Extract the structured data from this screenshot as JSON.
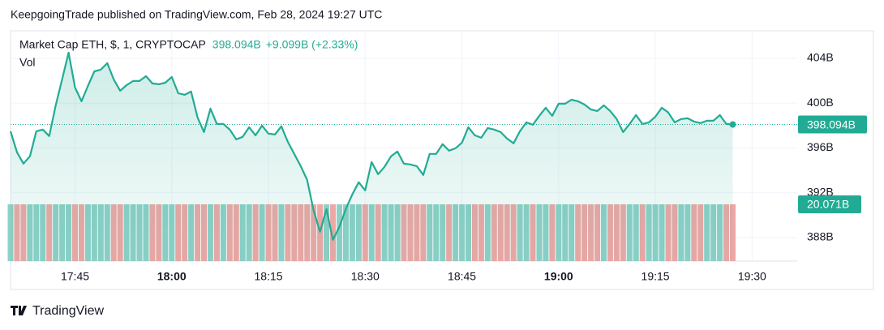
{
  "header": "KeepgoingTrade published on TradingView.com, Feb 28, 2024 19:27 UTC",
  "footer": "TradingView",
  "chart_data": {
    "type": "area",
    "x": [
      "17:35",
      "17:36",
      "17:37",
      "17:38",
      "17:39",
      "17:40",
      "17:41",
      "17:42",
      "17:43",
      "17:44",
      "17:45",
      "17:46",
      "17:47",
      "17:48",
      "17:49",
      "17:50",
      "17:51",
      "17:52",
      "17:53",
      "17:54",
      "17:55",
      "17:56",
      "17:57",
      "17:58",
      "17:59",
      "18:00",
      "18:01",
      "18:02",
      "18:03",
      "18:04",
      "18:05",
      "18:06",
      "18:07",
      "18:08",
      "18:09",
      "18:10",
      "18:11",
      "18:12",
      "18:13",
      "18:14",
      "18:15",
      "18:16",
      "18:17",
      "18:18",
      "18:19",
      "18:20",
      "18:21",
      "18:22",
      "18:23",
      "18:24",
      "18:25",
      "18:26",
      "18:27",
      "18:28",
      "18:29",
      "18:30",
      "18:31",
      "18:32",
      "18:33",
      "18:34",
      "18:35",
      "18:36",
      "18:37",
      "18:38",
      "18:39",
      "18:40",
      "18:41",
      "18:42",
      "18:43",
      "18:44",
      "18:45",
      "18:46",
      "18:47",
      "18:48",
      "18:49",
      "18:50",
      "18:51",
      "18:52",
      "18:53",
      "18:54",
      "18:55",
      "18:56",
      "18:57",
      "18:58",
      "18:59",
      "19:00",
      "19:01",
      "19:02",
      "19:03",
      "19:04",
      "19:05",
      "19:06",
      "19:07",
      "19:08",
      "19:09",
      "19:10",
      "19:11",
      "19:12",
      "19:13",
      "19:14",
      "19:15",
      "19:16",
      "19:17",
      "19:18",
      "19:19",
      "19:20",
      "19:21",
      "19:22",
      "19:23",
      "19:24",
      "19:25",
      "19:26",
      "19:27"
    ],
    "series": [
      {
        "name": "Market Cap ETH, $, 1, CRYPTOCAP",
        "color": "#22ab94",
        "last_label": "398.094B",
        "change_label": "+9.099B (+2.33%)",
        "values": [
          397.49,
          395.61,
          394.6,
          395.25,
          397.49,
          397.64,
          397.06,
          399.81,
          402.12,
          404.51,
          401.4,
          400.17,
          401.54,
          402.84,
          402.99,
          403.57,
          402.12,
          401.11,
          401.61,
          401.98,
          401.98,
          402.41,
          401.76,
          401.69,
          401.83,
          402.34,
          400.89,
          400.75,
          401.04,
          398.72,
          397.42,
          399.52,
          398.14,
          398.14,
          397.64,
          396.77,
          396.99,
          397.85,
          397.13,
          398.0,
          397.28,
          397.2,
          397.93,
          396.55,
          395.47,
          394.38,
          393.15,
          390.41,
          388.53,
          390.55,
          387.8,
          388.96,
          390.55,
          391.85,
          392.94,
          392.21,
          394.74,
          393.66,
          394.31,
          395.25,
          395.68,
          394.6,
          394.53,
          394.38,
          393.59,
          395.47,
          395.47,
          396.34,
          395.76,
          395.97,
          396.48,
          397.85,
          397.13,
          396.91,
          397.78,
          397.64,
          397.42,
          396.84,
          396.41,
          397.49,
          398.29,
          398.07,
          398.87,
          399.59,
          398.87,
          399.95,
          399.95,
          400.31,
          400.17,
          399.88,
          399.44,
          399.3,
          399.81,
          399.3,
          398.58,
          397.42,
          398.14,
          398.94,
          398.14,
          398.29,
          398.79,
          399.59,
          399.16,
          398.29,
          398.58,
          398.65,
          398.36,
          398.22,
          398.43,
          398.43,
          398.94,
          398.14,
          398.094
        ]
      }
    ],
    "volume": {
      "name": "Vol",
      "up_color": "#8ed0c7",
      "down_color": "#efa7a5",
      "last_label": "20.071B",
      "ylim": [
        0,
        81.4
      ],
      "values": [
        20.071,
        20.071,
        20.071,
        20.071,
        20.071,
        20.071,
        20.071,
        20.071,
        20.071,
        20.071,
        20.071,
        20.071,
        20.071,
        20.071,
        20.071,
        20.071,
        20.071,
        20.071,
        20.071,
        20.071,
        20.071,
        20.071,
        20.071,
        20.071,
        20.071,
        20.071,
        20.071,
        20.071,
        20.071,
        20.071,
        20.071,
        20.071,
        20.071,
        20.071,
        20.071,
        20.071,
        20.071,
        20.071,
        20.071,
        20.071,
        20.071,
        20.071,
        20.071,
        20.071,
        20.071,
        20.071,
        20.071,
        20.071,
        20.071,
        20.071,
        20.071,
        20.071,
        20.071,
        20.071,
        20.071,
        20.071,
        20.071,
        20.071,
        20.071,
        20.071,
        20.071,
        20.071,
        20.071,
        20.071,
        20.071,
        20.071,
        20.071,
        20.071,
        20.071,
        20.071,
        20.071,
        20.071,
        20.071,
        20.071,
        20.071,
        20.071,
        20.071,
        20.071,
        20.071,
        20.071,
        20.071,
        20.071,
        20.071,
        20.071,
        20.071,
        20.071,
        20.071,
        20.071,
        20.071,
        20.071,
        20.071,
        20.071,
        20.071,
        20.071,
        20.071,
        20.071,
        20.071,
        20.071,
        20.071,
        20.071,
        20.071,
        20.071,
        20.071,
        20.071,
        20.071,
        20.071,
        20.071,
        20.071,
        20.071,
        20.071,
        20.071,
        20.071,
        20.071
      ]
    },
    "xlim": [
      "17:35",
      "19:37"
    ],
    "xticks": [
      "17:45",
      "18:00",
      "18:15",
      "18:30",
      "18:45",
      "19:00",
      "19:15",
      "19:30"
    ],
    "ylim": [
      385.9,
      406.46
    ],
    "yticks": [
      {
        "value": 388,
        "label": "388B"
      },
      {
        "value": 392,
        "label": "392B"
      },
      {
        "value": 396,
        "label": "396B"
      },
      {
        "value": 400,
        "label": "400B"
      },
      {
        "value": 404,
        "label": "404B"
      }
    ],
    "grid": true
  }
}
